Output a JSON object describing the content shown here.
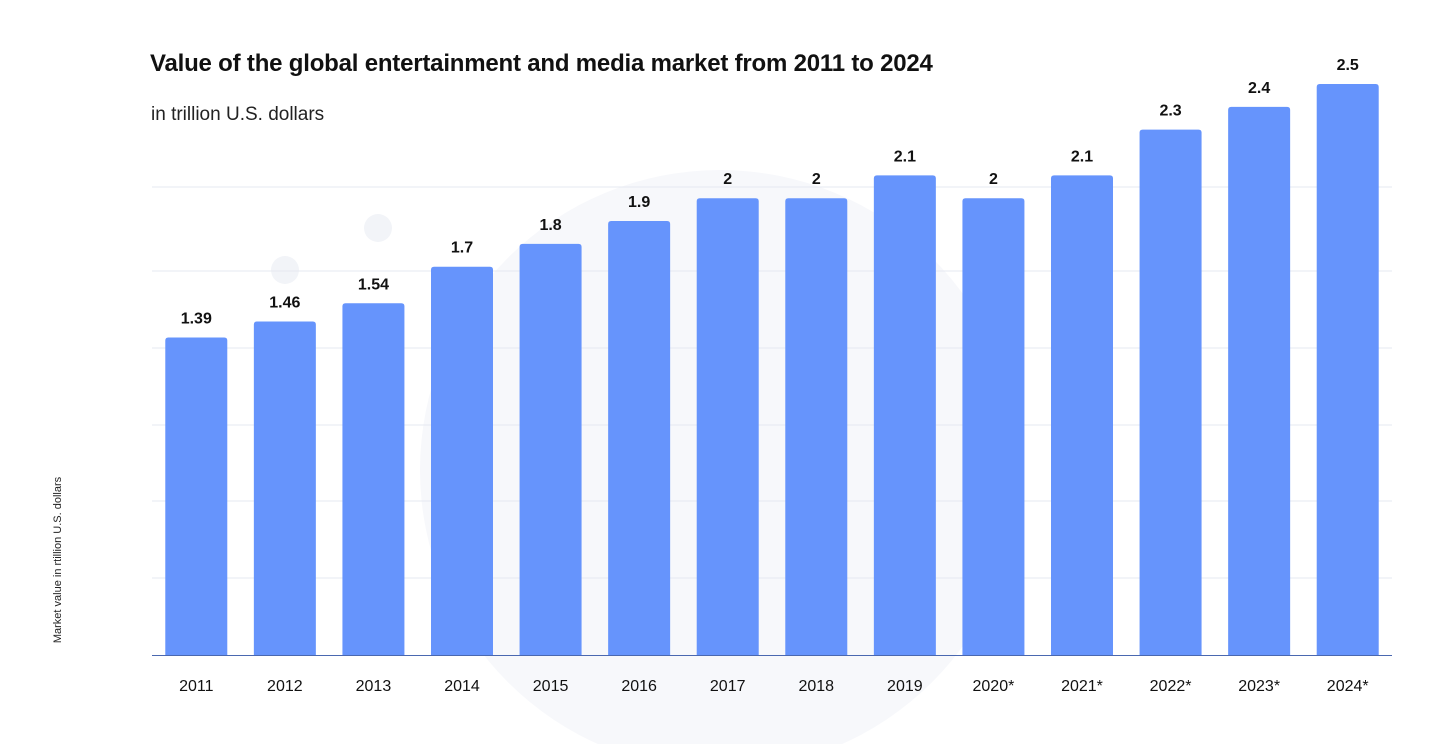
{
  "chart_data": {
    "type": "bar",
    "title": "Value of the global entertainment and media market from 2011 to 2024",
    "subtitle": "in trillion U.S. dollars",
    "xlabel": "",
    "ylabel": "Market value in rtillion U.S. dollars",
    "categories": [
      "2011",
      "2012",
      "2013",
      "2014",
      "2015",
      "2016",
      "2017",
      "2018",
      "2019",
      "2020*",
      "2021*",
      "2022*",
      "2023*",
      "2024*"
    ],
    "values": [
      1.39,
      1.46,
      1.54,
      1.7,
      1.8,
      1.9,
      2,
      2,
      2.1,
      2,
      2.1,
      2.3,
      2.4,
      2.5
    ],
    "data_labels": [
      "1.39",
      "1.46",
      "1.54",
      "1.7",
      "1.8",
      "1.9",
      "2",
      "2",
      "2.1",
      "2",
      "2.1",
      "2.3",
      "2.4",
      "2.5"
    ],
    "ylim": [
      0,
      2.5
    ],
    "grid": true,
    "legend": "none",
    "colors": {
      "bar": "#6694fc",
      "grid": "#e6e9f0",
      "axis": "#4a68b0",
      "text": "#111111"
    }
  }
}
